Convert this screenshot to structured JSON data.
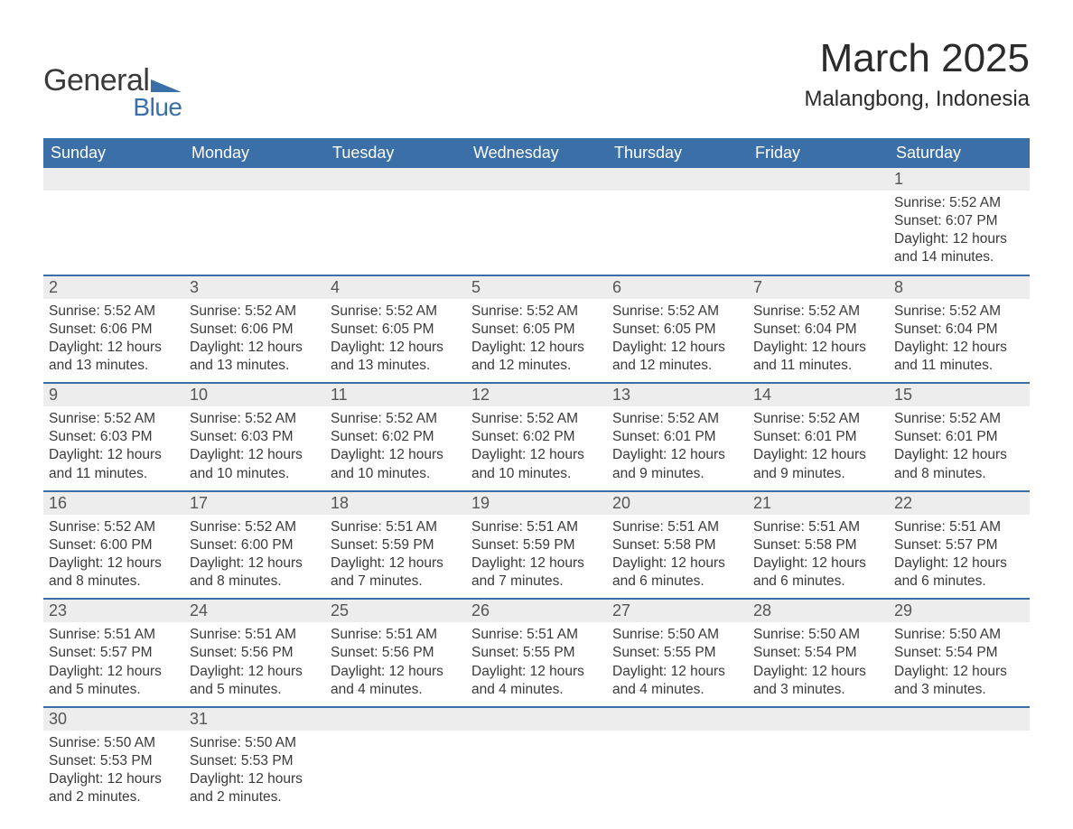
{
  "logo": {
    "text1": "General",
    "text2": "Blue",
    "shape_color": "#3b6fa8"
  },
  "title": "March 2025",
  "location": "Malangbong, Indonesia",
  "colors": {
    "header_bg": "#3b6fa8",
    "header_text": "#ffffff",
    "daynum_bg": "#ededed",
    "border": "#3b6fa8",
    "text": "#3a3a3a"
  },
  "font": {
    "family": "Arial",
    "title_size": 44,
    "location_size": 24,
    "header_size": 18,
    "daynum_size": 18,
    "body_size": 15.5
  },
  "weekdays": [
    "Sunday",
    "Monday",
    "Tuesday",
    "Wednesday",
    "Thursday",
    "Friday",
    "Saturday"
  ],
  "weeks": [
    [
      null,
      null,
      null,
      null,
      null,
      null,
      {
        "n": "1",
        "sr": "5:52 AM",
        "ss": "6:07 PM",
        "dl": "12 hours and 14 minutes."
      }
    ],
    [
      {
        "n": "2",
        "sr": "5:52 AM",
        "ss": "6:06 PM",
        "dl": "12 hours and 13 minutes."
      },
      {
        "n": "3",
        "sr": "5:52 AM",
        "ss": "6:06 PM",
        "dl": "12 hours and 13 minutes."
      },
      {
        "n": "4",
        "sr": "5:52 AM",
        "ss": "6:05 PM",
        "dl": "12 hours and 13 minutes."
      },
      {
        "n": "5",
        "sr": "5:52 AM",
        "ss": "6:05 PM",
        "dl": "12 hours and 12 minutes."
      },
      {
        "n": "6",
        "sr": "5:52 AM",
        "ss": "6:05 PM",
        "dl": "12 hours and 12 minutes."
      },
      {
        "n": "7",
        "sr": "5:52 AM",
        "ss": "6:04 PM",
        "dl": "12 hours and 11 minutes."
      },
      {
        "n": "8",
        "sr": "5:52 AM",
        "ss": "6:04 PM",
        "dl": "12 hours and 11 minutes."
      }
    ],
    [
      {
        "n": "9",
        "sr": "5:52 AM",
        "ss": "6:03 PM",
        "dl": "12 hours and 11 minutes."
      },
      {
        "n": "10",
        "sr": "5:52 AM",
        "ss": "6:03 PM",
        "dl": "12 hours and 10 minutes."
      },
      {
        "n": "11",
        "sr": "5:52 AM",
        "ss": "6:02 PM",
        "dl": "12 hours and 10 minutes."
      },
      {
        "n": "12",
        "sr": "5:52 AM",
        "ss": "6:02 PM",
        "dl": "12 hours and 10 minutes."
      },
      {
        "n": "13",
        "sr": "5:52 AM",
        "ss": "6:01 PM",
        "dl": "12 hours and 9 minutes."
      },
      {
        "n": "14",
        "sr": "5:52 AM",
        "ss": "6:01 PM",
        "dl": "12 hours and 9 minutes."
      },
      {
        "n": "15",
        "sr": "5:52 AM",
        "ss": "6:01 PM",
        "dl": "12 hours and 8 minutes."
      }
    ],
    [
      {
        "n": "16",
        "sr": "5:52 AM",
        "ss": "6:00 PM",
        "dl": "12 hours and 8 minutes."
      },
      {
        "n": "17",
        "sr": "5:52 AM",
        "ss": "6:00 PM",
        "dl": "12 hours and 8 minutes."
      },
      {
        "n": "18",
        "sr": "5:51 AM",
        "ss": "5:59 PM",
        "dl": "12 hours and 7 minutes."
      },
      {
        "n": "19",
        "sr": "5:51 AM",
        "ss": "5:59 PM",
        "dl": "12 hours and 7 minutes."
      },
      {
        "n": "20",
        "sr": "5:51 AM",
        "ss": "5:58 PM",
        "dl": "12 hours and 6 minutes."
      },
      {
        "n": "21",
        "sr": "5:51 AM",
        "ss": "5:58 PM",
        "dl": "12 hours and 6 minutes."
      },
      {
        "n": "22",
        "sr": "5:51 AM",
        "ss": "5:57 PM",
        "dl": "12 hours and 6 minutes."
      }
    ],
    [
      {
        "n": "23",
        "sr": "5:51 AM",
        "ss": "5:57 PM",
        "dl": "12 hours and 5 minutes."
      },
      {
        "n": "24",
        "sr": "5:51 AM",
        "ss": "5:56 PM",
        "dl": "12 hours and 5 minutes."
      },
      {
        "n": "25",
        "sr": "5:51 AM",
        "ss": "5:56 PM",
        "dl": "12 hours and 4 minutes."
      },
      {
        "n": "26",
        "sr": "5:51 AM",
        "ss": "5:55 PM",
        "dl": "12 hours and 4 minutes."
      },
      {
        "n": "27",
        "sr": "5:50 AM",
        "ss": "5:55 PM",
        "dl": "12 hours and 4 minutes."
      },
      {
        "n": "28",
        "sr": "5:50 AM",
        "ss": "5:54 PM",
        "dl": "12 hours and 3 minutes."
      },
      {
        "n": "29",
        "sr": "5:50 AM",
        "ss": "5:54 PM",
        "dl": "12 hours and 3 minutes."
      }
    ],
    [
      {
        "n": "30",
        "sr": "5:50 AM",
        "ss": "5:53 PM",
        "dl": "12 hours and 2 minutes."
      },
      {
        "n": "31",
        "sr": "5:50 AM",
        "ss": "5:53 PM",
        "dl": "12 hours and 2 minutes."
      },
      null,
      null,
      null,
      null,
      null
    ]
  ],
  "labels": {
    "sunrise": "Sunrise: ",
    "sunset": "Sunset: ",
    "daylight": "Daylight: "
  }
}
